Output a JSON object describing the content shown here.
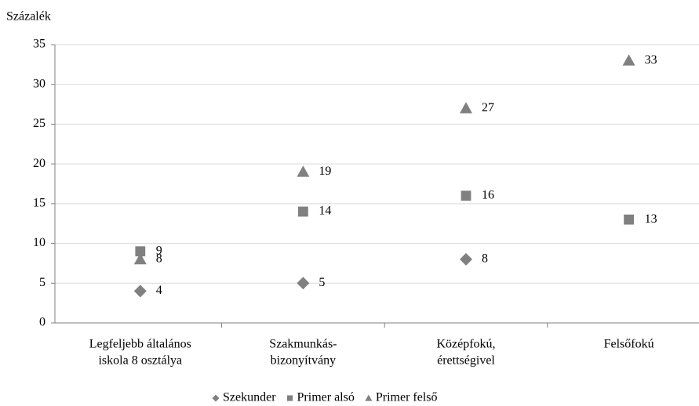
{
  "chart_data": {
    "type": "scatter",
    "y_axis_label": "Százalék",
    "categories": [
      [
        "Legfeljebb általános",
        "iskola 8 osztálya"
      ],
      [
        "Szakmunkás-",
        "bizonyítvány"
      ],
      [
        "Középfokú,",
        "érettségivel"
      ],
      [
        "Felsőfokú"
      ]
    ],
    "series": [
      {
        "name": "Szekunder",
        "color": "#808080",
        "marker": "diamond",
        "values": [
          4,
          5,
          8,
          null
        ]
      },
      {
        "name": "Primer alsó",
        "color": "#808080",
        "marker": "square",
        "values": [
          9,
          14,
          16,
          13
        ]
      },
      {
        "name": "Primer felső",
        "color": "#808080",
        "marker": "triangle",
        "values": [
          8,
          19,
          27,
          33
        ]
      }
    ],
    "ylim": [
      0,
      35
    ],
    "yticks": [
      0,
      5,
      10,
      15,
      20,
      25,
      30,
      35
    ],
    "grid": true,
    "legend": "bottom"
  }
}
